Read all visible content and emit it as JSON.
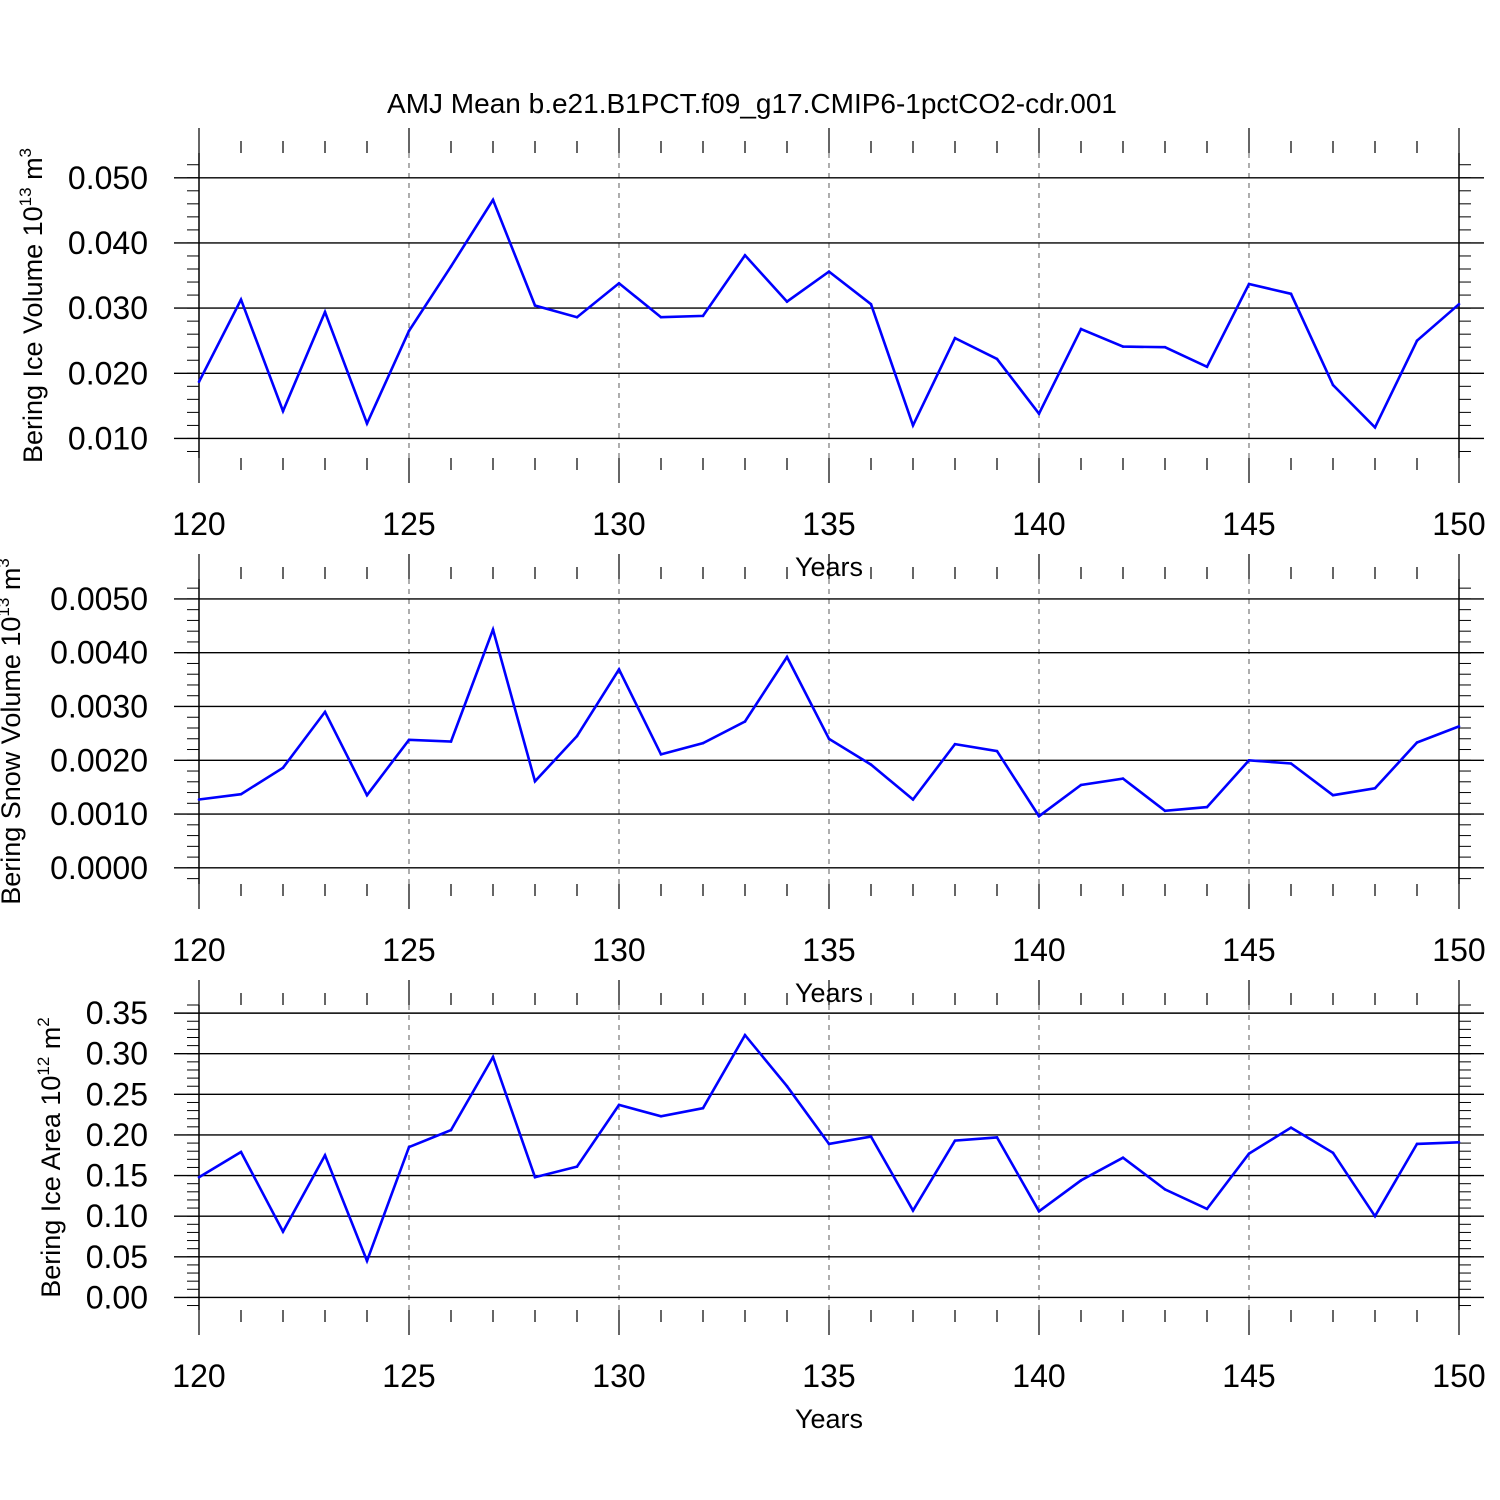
{
  "figure_title": "AMJ Mean b.e21.B1PCT.f09_g17.CMIP6-1pctCO2-cdr.001",
  "line_color": "#0000ff",
  "chart_data": [
    {
      "type": "line",
      "title": "",
      "xlabel": "Years",
      "ylabel": {
        "text": "Bering Ice Volume 10",
        "exp": "13",
        "unit": "m",
        "unit_exp": "3"
      },
      "xlim": [
        120,
        150
      ],
      "ylim": [
        0.007,
        0.0538
      ],
      "xticks": [
        120,
        125,
        130,
        135,
        140,
        145,
        150
      ],
      "xtick_labels": [
        "120",
        "125",
        "130",
        "135",
        "140",
        "145",
        "150"
      ],
      "yticks": [
        0.01,
        0.02,
        0.03,
        0.04,
        0.05
      ],
      "ytick_labels": [
        "0.010",
        "0.020",
        "0.030",
        "0.040",
        "0.050"
      ],
      "grid": "x-dashed",
      "x": [
        120,
        121,
        122,
        123,
        124,
        125,
        126,
        127,
        128,
        129,
        130,
        131,
        132,
        133,
        134,
        135,
        136,
        137,
        138,
        139,
        140,
        141,
        142,
        143,
        144,
        145,
        146,
        147,
        148,
        149,
        150
      ],
      "values": [
        0.0187,
        0.0313,
        0.0142,
        0.0294,
        0.0123,
        0.0265,
        0.0364,
        0.0466,
        0.0304,
        0.0286,
        0.0338,
        0.0286,
        0.0288,
        0.0381,
        0.031,
        0.0356,
        0.0306,
        0.012,
        0.0254,
        0.0222,
        0.0138,
        0.0268,
        0.0241,
        0.024,
        0.021,
        0.0337,
        0.0322,
        0.0182,
        0.0117,
        0.025,
        0.0306
      ]
    },
    {
      "type": "line",
      "title": "",
      "xlabel": "Years",
      "ylabel": {
        "text": "Bering Snow Volume 10",
        "exp": "13",
        "unit": "m",
        "unit_exp": "3"
      },
      "xlim": [
        120,
        150
      ],
      "ylim": [
        -0.0003,
        0.00537
      ],
      "xticks": [
        120,
        125,
        130,
        135,
        140,
        145,
        150
      ],
      "xtick_labels": [
        "120",
        "125",
        "130",
        "135",
        "140",
        "145",
        "150"
      ],
      "yticks": [
        0,
        0.001,
        0.002,
        0.003,
        0.004,
        0.005
      ],
      "ytick_labels": [
        "0.0000",
        "0.0010",
        "0.0020",
        "0.0030",
        "0.0040",
        "0.0050"
      ],
      "grid": "x-dashed",
      "x": [
        120,
        121,
        122,
        123,
        124,
        125,
        126,
        127,
        128,
        129,
        130,
        131,
        132,
        133,
        134,
        135,
        136,
        137,
        138,
        139,
        140,
        141,
        142,
        143,
        144,
        145,
        146,
        147,
        148,
        149,
        150
      ],
      "values": [
        0.00127,
        0.00137,
        0.00186,
        0.0029,
        0.00135,
        0.00238,
        0.00235,
        0.00443,
        0.00161,
        0.00245,
        0.00369,
        0.00211,
        0.00232,
        0.00272,
        0.00392,
        0.0024,
        0.00192,
        0.00127,
        0.0023,
        0.00217,
        0.00096,
        0.00154,
        0.00166,
        0.00106,
        0.00113,
        0.002,
        0.00194,
        0.00135,
        0.00148,
        0.00233,
        0.00263
      ]
    },
    {
      "type": "line",
      "title": "",
      "xlabel": "Years",
      "ylabel": {
        "text": "Bering Ice Area 10",
        "exp": "12",
        "unit": "m",
        "unit_exp": "2"
      },
      "xlim": [
        120,
        150
      ],
      "ylim": [
        -0.0155,
        0.36
      ],
      "xticks": [
        120,
        125,
        130,
        135,
        140,
        145,
        150
      ],
      "xtick_labels": [
        "120",
        "125",
        "130",
        "135",
        "140",
        "145",
        "150"
      ],
      "yticks": [
        0,
        0.05,
        0.1,
        0.15,
        0.2,
        0.25,
        0.3,
        0.35
      ],
      "ytick_labels": [
        "0.00",
        "0.05",
        "0.10",
        "0.15",
        "0.20",
        "0.25",
        "0.30",
        "0.35"
      ],
      "grid": "x-dashed",
      "x": [
        120,
        121,
        122,
        123,
        124,
        125,
        126,
        127,
        128,
        129,
        130,
        131,
        132,
        133,
        134,
        135,
        136,
        137,
        138,
        139,
        140,
        141,
        142,
        143,
        144,
        145,
        146,
        147,
        148,
        149,
        150
      ],
      "values": [
        0.148,
        0.179,
        0.081,
        0.175,
        0.045,
        0.185,
        0.206,
        0.296,
        0.148,
        0.161,
        0.237,
        0.223,
        0.233,
        0.323,
        0.26,
        0.189,
        0.198,
        0.107,
        0.193,
        0.197,
        0.106,
        0.144,
        0.172,
        0.133,
        0.109,
        0.177,
        0.209,
        0.178,
        0.1,
        0.189,
        0.191
      ]
    }
  ]
}
